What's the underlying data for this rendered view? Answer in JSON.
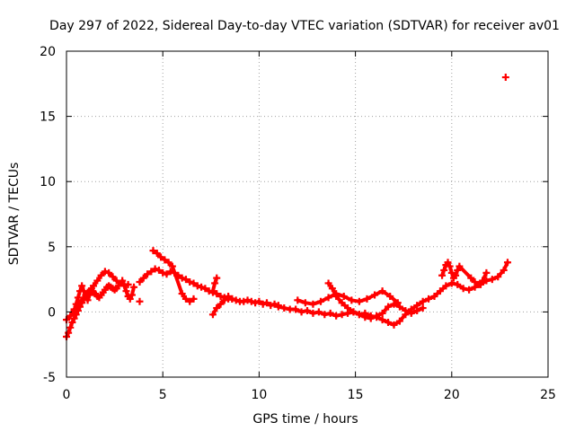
{
  "chart_data": {
    "type": "scatter",
    "title": "Day 297 of 2022, Sidereal Day-to-day VTEC variation (SDTVAR) for receiver av01",
    "xlabel": "GPS time / hours",
    "ylabel": "SDTVAR / TECUs",
    "xlim": [
      0,
      25
    ],
    "ylim": [
      -5,
      20
    ],
    "xticks": [
      0,
      5,
      10,
      15,
      20,
      25
    ],
    "yticks": [
      -5,
      0,
      5,
      10,
      15,
      20
    ],
    "grid": true,
    "marker": "+",
    "color": "#ff0000",
    "series": [
      {
        "name": "SDTVAR",
        "x": [
          0.0,
          0.1,
          0.2,
          0.3,
          0.4,
          0.5,
          0.6,
          0.7,
          0.8,
          0.9,
          1.0,
          1.1,
          1.2,
          1.3,
          1.4,
          1.5,
          1.6,
          1.7,
          1.8,
          1.9,
          2.0,
          2.1,
          2.2,
          2.3,
          2.4,
          2.5,
          2.6,
          2.7,
          2.8,
          2.9,
          3.0,
          3.1,
          3.2,
          3.3,
          3.4,
          3.5,
          0.0,
          0.2,
          0.4,
          0.6,
          0.8,
          1.0,
          1.2,
          1.4,
          1.6,
          1.8,
          2.0,
          2.2,
          2.4,
          2.6,
          2.8,
          3.0,
          3.2,
          0.4,
          0.5,
          0.6,
          0.7,
          0.8,
          0.9,
          1.0,
          1.1,
          1.2,
          1.3,
          3.8,
          4.0,
          4.2,
          4.4,
          4.6,
          4.8,
          5.0,
          5.2,
          5.4,
          5.6,
          5.8,
          6.0,
          6.2,
          6.4,
          6.6,
          6.8,
          7.0,
          7.2,
          7.4,
          7.6,
          7.8,
          8.0,
          8.2,
          8.4,
          8.6,
          8.8,
          9.0,
          9.2,
          9.4,
          9.6,
          9.8,
          10.0,
          10.2,
          10.4,
          10.6,
          10.8,
          11.0,
          4.5,
          4.7,
          4.9,
          5.1,
          5.3,
          5.5,
          6.0,
          6.2,
          6.4,
          6.6,
          7.6,
          7.7,
          7.8,
          3.8,
          7.6,
          7.8,
          8.0,
          8.2,
          8.4,
          8.6,
          11.0,
          11.3,
          11.6,
          11.9,
          12.2,
          12.5,
          12.8,
          13.1,
          13.4,
          13.7,
          14.0,
          14.3,
          14.6,
          14.9,
          15.2,
          15.5,
          15.8,
          16.1,
          16.4,
          16.7,
          17.0,
          17.3,
          17.6,
          17.9,
          18.2,
          18.5,
          18.8,
          19.1,
          19.4,
          19.7,
          20.0,
          20.3,
          20.6,
          20.9,
          21.2,
          21.5,
          21.8,
          22.1,
          22.4,
          22.7,
          22.9,
          12.0,
          12.4,
          12.8,
          13.2,
          13.6,
          14.0,
          14.4,
          14.8,
          15.2,
          15.6,
          16.0,
          16.4,
          16.8,
          17.2,
          13.6,
          13.8,
          14.0,
          14.3,
          14.6,
          14.9,
          15.2,
          15.5,
          15.8,
          16.1,
          16.4,
          16.7,
          17.0,
          17.3,
          17.6,
          17.9,
          18.2,
          18.5,
          19.5,
          19.6,
          19.7,
          19.8,
          19.9,
          20.0,
          20.1,
          20.2,
          20.3,
          20.4,
          21.0,
          21.2,
          21.4,
          21.6,
          21.8,
          22.8
        ],
        "y": [
          -1.9,
          -1.6,
          -1.2,
          -0.8,
          -0.5,
          -0.2,
          0.1,
          0.4,
          0.7,
          1.0,
          1.3,
          1.5,
          1.6,
          1.6,
          1.5,
          1.4,
          1.2,
          1.1,
          1.3,
          1.5,
          1.7,
          1.9,
          2.0,
          1.9,
          1.8,
          1.7,
          1.8,
          2.0,
          2.2,
          2.4,
          2.1,
          1.6,
          1.2,
          1.0,
          1.3,
          1.9,
          -0.6,
          -0.3,
          0.2,
          0.6,
          0.9,
          1.2,
          1.6,
          2.0,
          2.4,
          2.8,
          3.1,
          3.0,
          2.7,
          2.4,
          2.2,
          2.0,
          2.1,
          0.1,
          0.6,
          1.1,
          1.6,
          2.0,
          1.6,
          1.2,
          0.9,
          1.3,
          1.8,
          2.3,
          2.6,
          2.9,
          3.1,
          3.3,
          3.2,
          3.0,
          2.9,
          3.1,
          3.0,
          2.8,
          2.6,
          2.5,
          2.3,
          2.2,
          2.0,
          1.9,
          1.8,
          1.6,
          1.5,
          1.4,
          1.2,
          1.1,
          1.0,
          1.0,
          0.9,
          0.8,
          0.8,
          0.9,
          0.8,
          0.7,
          0.8,
          0.6,
          0.7,
          0.5,
          0.6,
          0.5,
          4.7,
          4.5,
          4.2,
          4.0,
          3.8,
          3.5,
          1.4,
          1.0,
          0.8,
          1.0,
          1.6,
          2.2,
          2.6,
          0.8,
          -0.2,
          0.3,
          0.6,
          0.9,
          1.2,
          1.0,
          0.4,
          0.3,
          0.2,
          0.2,
          0.0,
          0.1,
          -0.1,
          0.0,
          -0.2,
          -0.1,
          -0.3,
          -0.2,
          -0.1,
          0.0,
          -0.2,
          -0.1,
          -0.3,
          -0.4,
          -0.6,
          -0.8,
          -1.0,
          -0.7,
          -0.2,
          0.2,
          0.5,
          0.8,
          1.0,
          1.2,
          1.6,
          2.0,
          2.2,
          2.1,
          1.8,
          1.7,
          1.9,
          2.1,
          2.4,
          2.5,
          2.7,
          3.2,
          3.8,
          0.9,
          0.7,
          0.6,
          0.8,
          1.1,
          1.4,
          1.2,
          0.9,
          0.8,
          1.0,
          1.3,
          1.6,
          1.2,
          0.7,
          2.2,
          1.8,
          1.2,
          0.7,
          0.3,
          0.0,
          -0.2,
          -0.4,
          -0.5,
          -0.3,
          -0.1,
          0.4,
          0.6,
          0.4,
          0.1,
          -0.1,
          0.1,
          0.3,
          2.8,
          3.2,
          3.6,
          3.8,
          3.5,
          3.0,
          2.6,
          2.8,
          3.2,
          3.5,
          2.6,
          2.3,
          2.1,
          2.4,
          3.0,
          18.0
        ]
      }
    ]
  }
}
